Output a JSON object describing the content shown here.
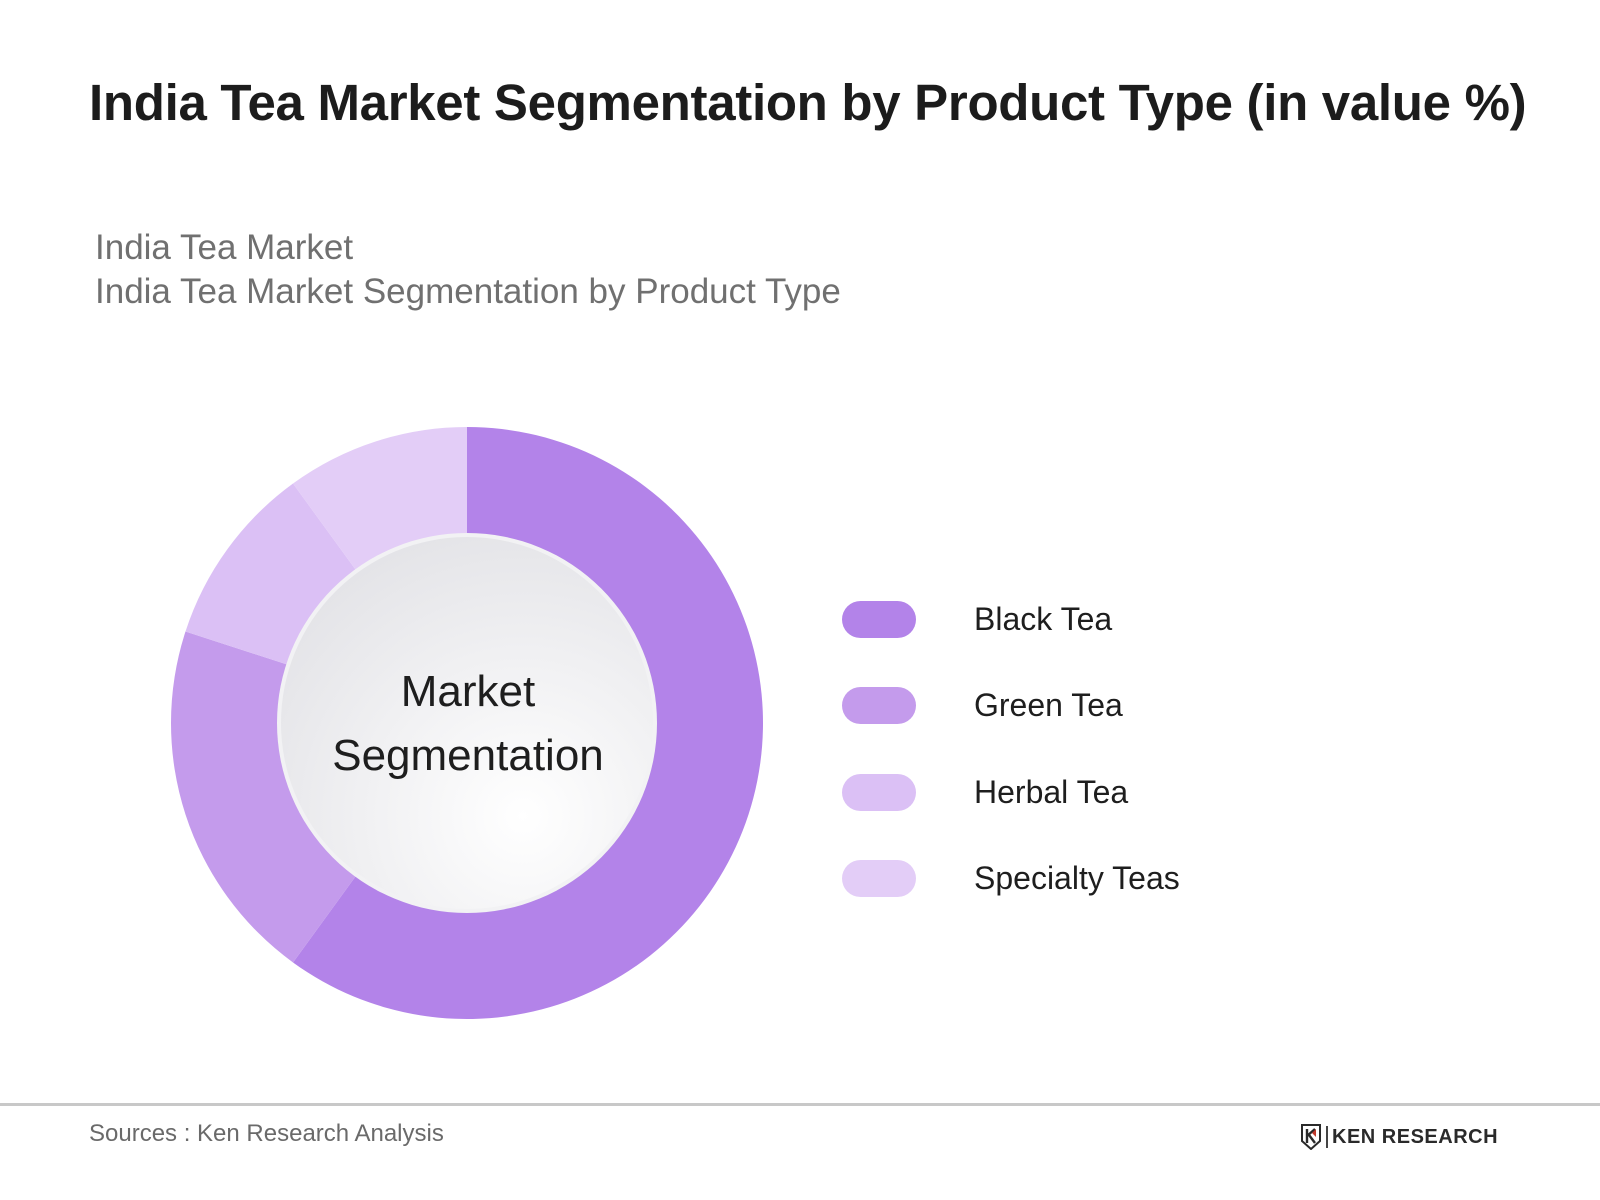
{
  "header": {
    "title": "India Tea Market Segmentation by Product Type (in value %)",
    "subtitle_line1": "India Tea Market",
    "subtitle_line2": "India Tea Market Segmentation by Product Type"
  },
  "chart": {
    "center_label_line1": "Market",
    "center_label_line2": "Segmentation"
  },
  "legend": [
    {
      "label": "Black Tea",
      "color": "#b383e9"
    },
    {
      "label": "Green Tea",
      "color": "#c49bec"
    },
    {
      "label": "Herbal Tea",
      "color": "#dbc0f5"
    },
    {
      "label": "Specialty Teas",
      "color": "#e3cdf7"
    }
  ],
  "footer": {
    "sources": "Sources : Ken Research Analysis",
    "brand": "KEN RESEARCH"
  },
  "chart_data": {
    "type": "pie",
    "subtype": "donut",
    "title": "India Tea Market Segmentation by Product Type (in value %)",
    "subtitle": "India Tea Market / India Tea Market Segmentation by Product Type",
    "center_label": "Market Segmentation",
    "categories": [
      "Black Tea",
      "Green Tea",
      "Herbal Tea",
      "Specialty Teas"
    ],
    "values": [
      60,
      20,
      10,
      10
    ],
    "colors": [
      "#b383e9",
      "#c49bec",
      "#dbc0f5",
      "#e3cdf7"
    ],
    "unit": "%",
    "start_angle": "12 o'clock, clockwise",
    "legend_position": "right",
    "source": "Ken Research Analysis"
  }
}
